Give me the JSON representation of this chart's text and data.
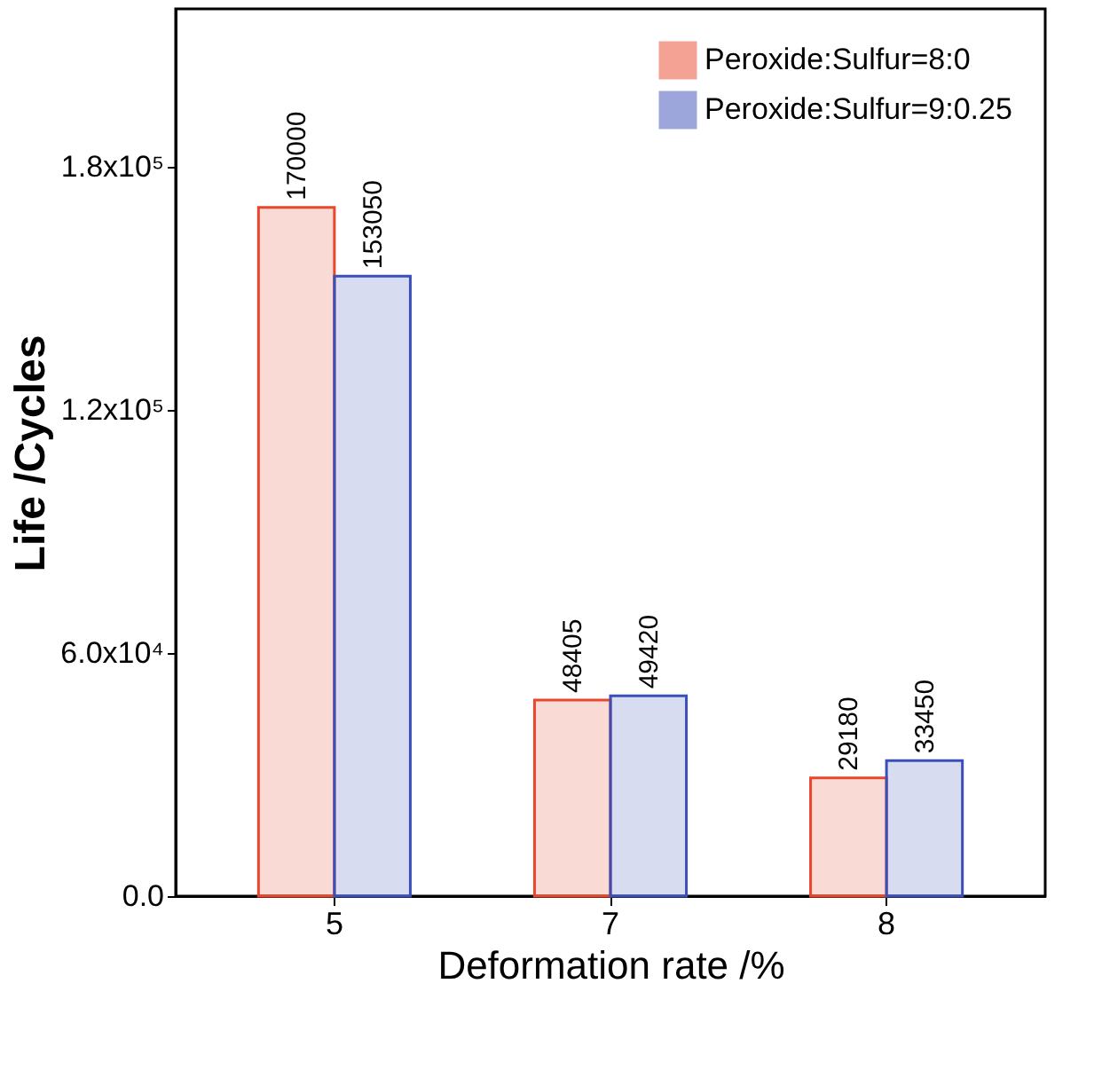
{
  "chart_data": {
    "type": "bar",
    "xlabel": "Deformation rate /%",
    "ylabel": "Life /Cycles",
    "categories": [
      "5",
      "7",
      "8"
    ],
    "series": [
      {
        "name": "Peroxide:Sulfur=8:0",
        "color": "#e8472c",
        "values": [
          170000,
          48405,
          29180
        ]
      },
      {
        "name": "Peroxide:Sulfur=9:0.25",
        "color": "#3b4fb8",
        "values": [
          153050,
          49420,
          33450
        ]
      }
    ],
    "ylim": [
      0,
      219000
    ],
    "yticks": [
      {
        "value": 0,
        "label": "0.0"
      },
      {
        "value": 60000,
        "label": "6.0x10⁴"
      },
      {
        "value": 120000,
        "label": "1.2x10⁵"
      },
      {
        "value": 180000,
        "label": "1.8x10⁵"
      }
    ],
    "data_labels": true,
    "legend": "top right",
    "grid": false
  }
}
